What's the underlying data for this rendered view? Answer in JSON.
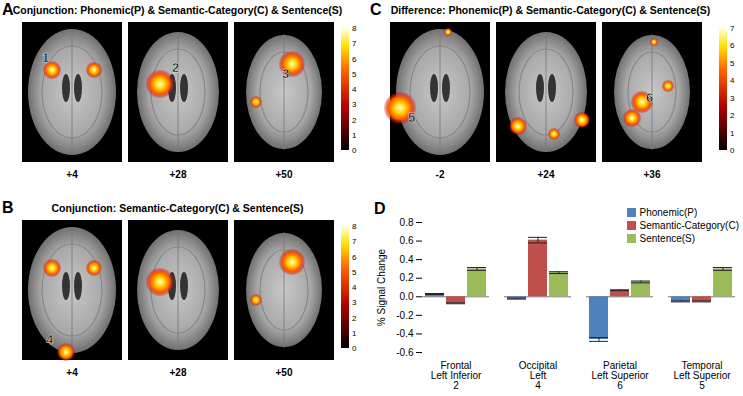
{
  "brain_maps": [
    {
      "panel": "A",
      "title": "Conjunction: Phonemic(P) & Semantic-Category(C) & Sentence(S)",
      "slices": [
        "+4",
        "+28",
        "+50"
      ],
      "regions": [
        {
          "label": "1",
          "slice": 0
        },
        {
          "label": "2",
          "slice": 1
        },
        {
          "label": "3",
          "slice": 2
        }
      ],
      "colorbar": {
        "range": [
          0,
          8
        ],
        "ticks": [
          0,
          1,
          2,
          3,
          4,
          5,
          6,
          7,
          8
        ]
      }
    },
    {
      "panel": "B",
      "title": "Conjunction: Semantic-Category(C) & Sentence(S)",
      "slices": [
        "+4",
        "+28",
        "+50"
      ],
      "regions": [
        {
          "label": "4",
          "slice": 0
        }
      ],
      "colorbar": {
        "range": [
          0,
          8
        ],
        "ticks": [
          0,
          1,
          2,
          3,
          4,
          5,
          6,
          7,
          8
        ]
      }
    },
    {
      "panel": "C",
      "title": "Difference: Phonemic(P) & Semantic-Category(C) & Sentence(S)",
      "slices": [
        "-2",
        "+24",
        "+36"
      ],
      "regions": [
        {
          "label": "5",
          "slice": 0
        },
        {
          "label": "6",
          "slice": 2
        }
      ],
      "colorbar": {
        "range": [
          0,
          7
        ],
        "ticks": [
          0,
          1,
          2,
          3,
          4,
          5,
          6,
          7
        ]
      }
    }
  ],
  "chart_data": {
    "type": "bar",
    "title": "D",
    "categories": [
      "Frontal Left Inferior",
      "Occipital Left",
      "Parietal Left Superior",
      "Temporal Left Superior"
    ],
    "category_numbers": [
      "2",
      "4",
      "6",
      "5"
    ],
    "series": [
      {
        "name": "Phonemic(P)",
        "color": "#4f81bd",
        "values": [
          0.03,
          -0.02,
          -0.46,
          -0.05
        ],
        "errors": [
          0.005,
          0.005,
          0.02,
          0.005
        ]
      },
      {
        "name": "Semantic-Category(C)",
        "color": "#c0504d",
        "values": [
          -0.07,
          0.61,
          0.07,
          -0.05
        ],
        "errors": [
          0.005,
          0.03,
          0.005,
          0.005
        ]
      },
      {
        "name": "Sentence(S)",
        "color": "#9bbb59",
        "values": [
          0.3,
          0.26,
          0.16,
          0.3
        ],
        "errors": [
          0.015,
          0.01,
          0.01,
          0.015
        ]
      }
    ],
    "ylabel": "% Signal Change",
    "ylim": [
      -0.6,
      0.8
    ],
    "yticks": [
      -0.6,
      -0.4,
      -0.2,
      {
        "value": 0,
        "label": "0.0"
      },
      0.2,
      0.4,
      0.6,
      0.8
    ],
    "legend": "top-right"
  }
}
